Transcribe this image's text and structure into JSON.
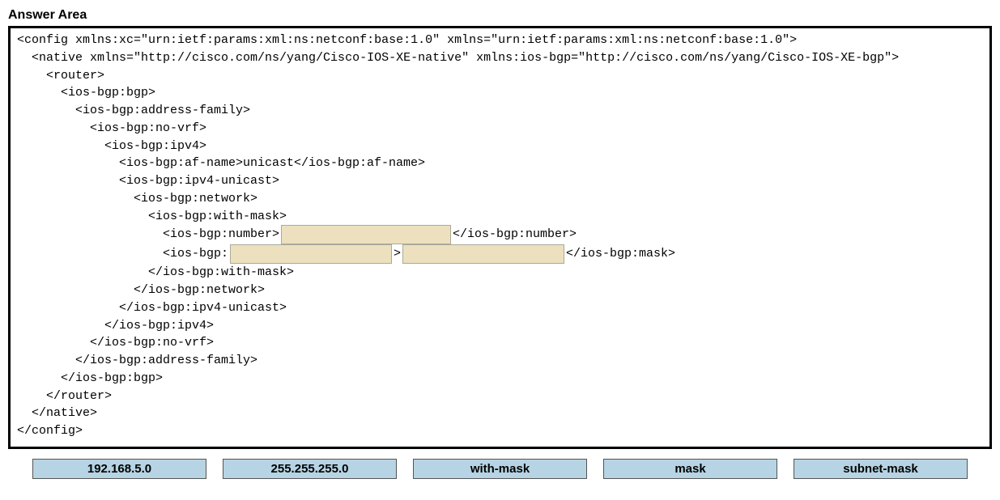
{
  "title": "Answer Area",
  "code": {
    "l1": "<config xmlns:xc=\"urn:ietf:params:xml:ns:netconf:base:1.0\" xmlns=\"urn:ietf:params:xml:ns:netconf:base:1.0\">",
    "l2": "<native xmlns=\"http://cisco.com/ns/yang/Cisco-IOS-XE-native\" xmlns:ios-bgp=\"http://cisco.com/ns/yang/Cisco-IOS-XE-bgp\">",
    "l3": "<router>",
    "l4": "<ios-bgp:bgp>",
    "l5": "<ios-bgp:address-family>",
    "l6": "<ios-bgp:no-vrf>",
    "l7": "<ios-bgp:ipv4>",
    "l8": "<ios-bgp:af-name>unicast</ios-bgp:af-name>",
    "l9": "<ios-bgp:ipv4-unicast>",
    "l10": "<ios-bgp:network>",
    "l11": "<ios-bgp:with-mask>",
    "l12a": "<ios-bgp:number>",
    "l12b": "</ios-bgp:number>",
    "l13a": "<ios-bgp:",
    "l13b": ">",
    "l13c": "</ios-bgp:mask>",
    "l14": "</ios-bgp:with-mask>",
    "l15": "</ios-bgp:network>",
    "l16": "</ios-bgp:ipv4-unicast>",
    "l17": "</ios-bgp:ipv4>",
    "l18": "</ios-bgp:no-vrf>",
    "l19": "</ios-bgp:address-family>",
    "l20": "</ios-bgp:bgp>",
    "l21": "</router>",
    "l22": "</native>",
    "l23": "</config>"
  },
  "options": {
    "o1": "192.168.5.0",
    "o2": "255.255.255.0",
    "o3": "with-mask",
    "o4": "mask",
    "o5": "subnet-mask"
  },
  "colors": {
    "slot_bg": "#ece0be",
    "option_bg": "#b6d4e3",
    "border": "#000000"
  }
}
